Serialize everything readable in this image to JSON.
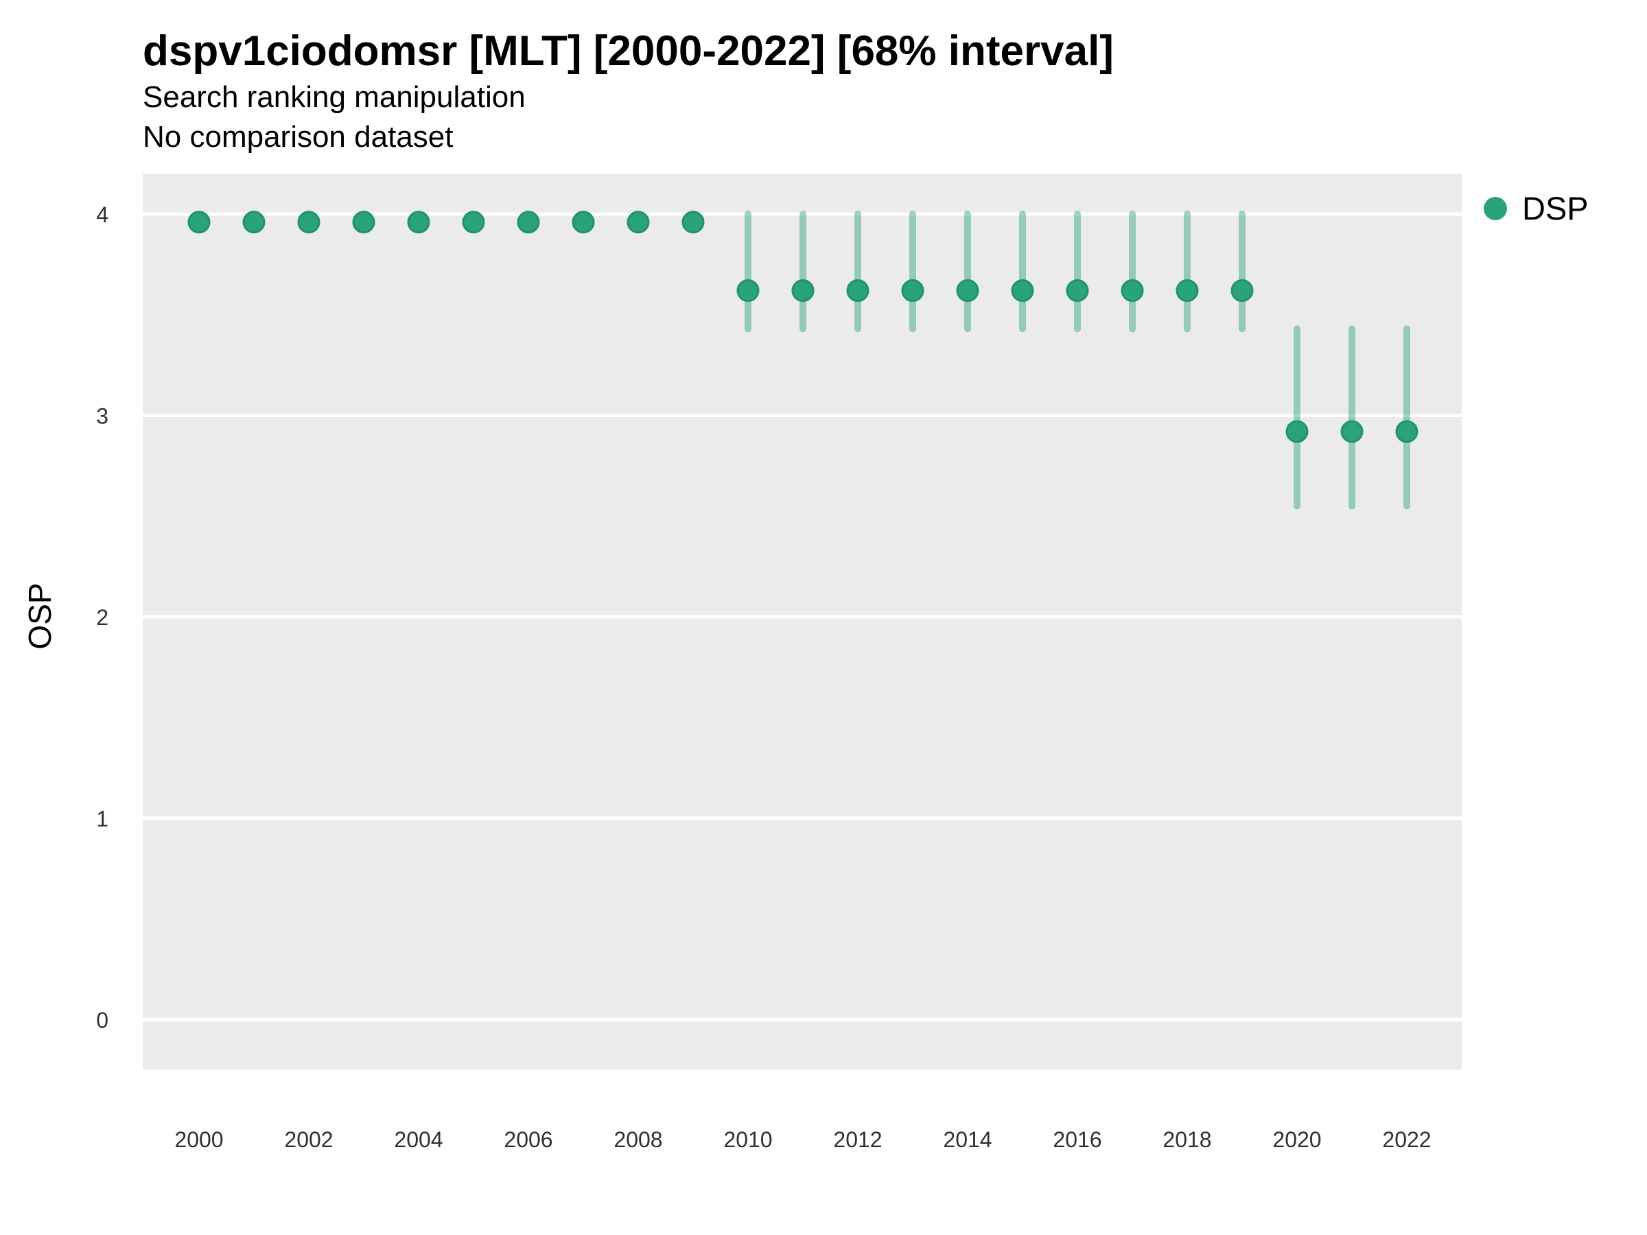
{
  "header": {
    "title": "dspv1ciodomsr [MLT] [2000-2022] [68% interval]",
    "subtitle": "Search ranking manipulation",
    "subtitle2": "No comparison dataset"
  },
  "colors": {
    "panel_bg": "#ebebeb",
    "grid": "#ffffff",
    "point": "#2aa378",
    "point_edge": "#1f9468",
    "interval_opacity": 0.45,
    "tick_text": "#303030",
    "text": "#000000"
  },
  "chart_data": {
    "type": "scatter",
    "subtype": "pointrange",
    "title": "dspv1ciodomsr [MLT] [2000-2022] [68% interval]",
    "subtitle": "Search ranking manipulation",
    "subtitle2": "No comparison dataset",
    "xlabel": "",
    "ylabel": "OSP",
    "interval_level": "68%",
    "ylim": [
      -0.25,
      4.2
    ],
    "xlim": [
      1999,
      2023
    ],
    "y_ticks": [
      0,
      1,
      2,
      3,
      4
    ],
    "x_ticks": [
      2000,
      2002,
      2004,
      2006,
      2008,
      2010,
      2012,
      2014,
      2016,
      2018,
      2020,
      2022
    ],
    "grid": "horizontal-major-only",
    "legend_position": "right-top",
    "series": [
      {
        "name": "DSP",
        "points": [
          {
            "x": 2000,
            "y": 3.96,
            "lo": 3.96,
            "hi": 3.96
          },
          {
            "x": 2001,
            "y": 3.96,
            "lo": 3.96,
            "hi": 3.96
          },
          {
            "x": 2002,
            "y": 3.96,
            "lo": 3.96,
            "hi": 3.96
          },
          {
            "x": 2003,
            "y": 3.96,
            "lo": 3.96,
            "hi": 3.96
          },
          {
            "x": 2004,
            "y": 3.96,
            "lo": 3.96,
            "hi": 3.96
          },
          {
            "x": 2005,
            "y": 3.96,
            "lo": 3.96,
            "hi": 3.96
          },
          {
            "x": 2006,
            "y": 3.96,
            "lo": 3.96,
            "hi": 3.96
          },
          {
            "x": 2007,
            "y": 3.96,
            "lo": 3.96,
            "hi": 3.96
          },
          {
            "x": 2008,
            "y": 3.96,
            "lo": 3.96,
            "hi": 3.96
          },
          {
            "x": 2009,
            "y": 3.96,
            "lo": 3.96,
            "hi": 3.96
          },
          {
            "x": 2010,
            "y": 3.62,
            "lo": 3.43,
            "hi": 4.0
          },
          {
            "x": 2011,
            "y": 3.62,
            "lo": 3.43,
            "hi": 4.0
          },
          {
            "x": 2012,
            "y": 3.62,
            "lo": 3.43,
            "hi": 4.0
          },
          {
            "x": 2013,
            "y": 3.62,
            "lo": 3.43,
            "hi": 4.0
          },
          {
            "x": 2014,
            "y": 3.62,
            "lo": 3.43,
            "hi": 4.0
          },
          {
            "x": 2015,
            "y": 3.62,
            "lo": 3.43,
            "hi": 4.0
          },
          {
            "x": 2016,
            "y": 3.62,
            "lo": 3.43,
            "hi": 4.0
          },
          {
            "x": 2017,
            "y": 3.62,
            "lo": 3.43,
            "hi": 4.0
          },
          {
            "x": 2018,
            "y": 3.62,
            "lo": 3.43,
            "hi": 4.0
          },
          {
            "x": 2019,
            "y": 3.62,
            "lo": 3.43,
            "hi": 4.0
          },
          {
            "x": 2020,
            "y": 2.92,
            "lo": 2.55,
            "hi": 3.43
          },
          {
            "x": 2021,
            "y": 2.92,
            "lo": 2.55,
            "hi": 3.43
          },
          {
            "x": 2022,
            "y": 2.92,
            "lo": 2.55,
            "hi": 3.43
          }
        ]
      }
    ]
  }
}
